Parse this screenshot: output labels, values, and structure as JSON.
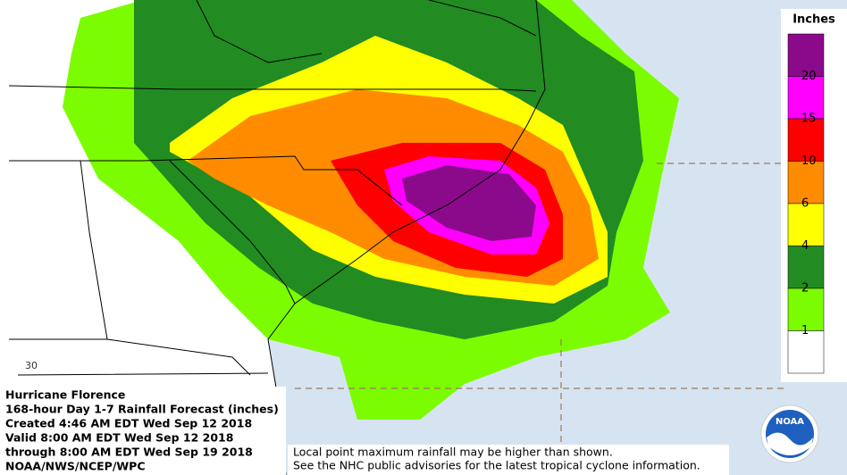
{
  "legend": {
    "title": "Inches",
    "labels": [
      "20",
      "15",
      "10",
      "6",
      "4",
      "2",
      "1"
    ],
    "colors": [
      "#8b0a8b",
      "#ff00ff",
      "#ff0000",
      "#ff8c00",
      "#ffff00",
      "#228b22",
      "#7cfc00",
      "#ffffff"
    ]
  },
  "map": {
    "grid_label": "30"
  },
  "info": {
    "lines": [
      "Hurricane Florence",
      "168-hour Day 1-7 Rainfall Forecast (inches)",
      "Created 4:46 AM EDT Wed Sep 12 2018",
      "Valid 8:00 AM EDT Wed Sep 12 2018",
      "through 8:00 AM EDT Wed Sep 19 2018",
      "NOAA/NWS/NCEP/WPC"
    ]
  },
  "footnote": {
    "lines": [
      "Local point maximum rainfall may be higher than shown.",
      "See the NHC public advisories for the latest tropical cyclone information."
    ]
  },
  "logo": {
    "text": "NOAA"
  }
}
